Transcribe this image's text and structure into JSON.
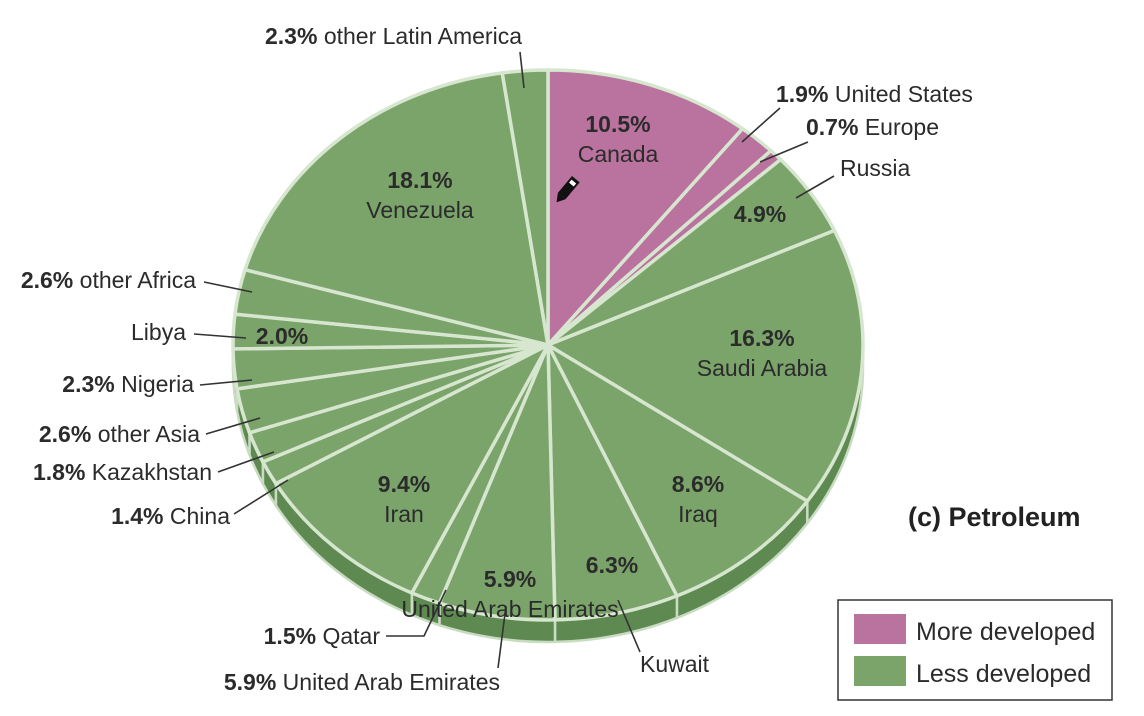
{
  "chart_data": {
    "type": "pie",
    "title": "(c) Petroleum",
    "colors": {
      "more_developed": "#b9739e",
      "less_developed": "#7ba46b",
      "side_green": "#5e8a52",
      "side_pink": "#9a5a82"
    },
    "legend": [
      {
        "label": "More developed",
        "color": "#b9739e"
      },
      {
        "label": "Less developed",
        "color": "#7ba46b"
      }
    ],
    "legend_position": "bottom-right",
    "slices": [
      {
        "name": "Canada",
        "pct_text": "10.5%",
        "value": 10.5,
        "group": "more"
      },
      {
        "name": "United States",
        "pct_text": "1.9%",
        "value": 1.9,
        "group": "more"
      },
      {
        "name": "Europe",
        "pct_text": "0.7%",
        "value": 0.7,
        "group": "more"
      },
      {
        "name": "Russia",
        "pct_text": "4.9%",
        "value": 4.9,
        "group": "less"
      },
      {
        "name": "Saudi Arabia",
        "pct_text": "16.3%",
        "value": 16.3,
        "group": "less"
      },
      {
        "name": "Iraq",
        "pct_text": "8.6%",
        "value": 8.6,
        "group": "less"
      },
      {
        "name": "Kuwait",
        "pct_text": "6.3%",
        "value": 6.3,
        "group": "less"
      },
      {
        "name": "United Arab Emirates",
        "pct_text": "5.9%",
        "value": 5.9,
        "group": "less"
      },
      {
        "name": "Qatar",
        "pct_text": "1.5%",
        "value": 1.5,
        "group": "less"
      },
      {
        "name": "Iran",
        "pct_text": "9.4%",
        "value": 9.4,
        "group": "less"
      },
      {
        "name": "China",
        "pct_text": "1.4%",
        "value": 1.4,
        "group": "less"
      },
      {
        "name": "Kazakhstan",
        "pct_text": "1.8%",
        "value": 1.8,
        "group": "less"
      },
      {
        "name": "other Asia",
        "pct_text": "2.6%",
        "value": 2.6,
        "group": "less"
      },
      {
        "name": "Nigeria",
        "pct_text": "2.3%",
        "value": 2.3,
        "group": "less"
      },
      {
        "name": "Libya",
        "pct_text": "2.0%",
        "value": 2.0,
        "group": "less"
      },
      {
        "name": "other Africa",
        "pct_text": "2.6%",
        "value": 2.6,
        "group": "less"
      },
      {
        "name": "Venezuela",
        "pct_text": "18.1%",
        "value": 18.1,
        "group": "less"
      },
      {
        "name": "other Latin America",
        "pct_text": "2.3%",
        "value": 2.3,
        "group": "less"
      }
    ]
  }
}
